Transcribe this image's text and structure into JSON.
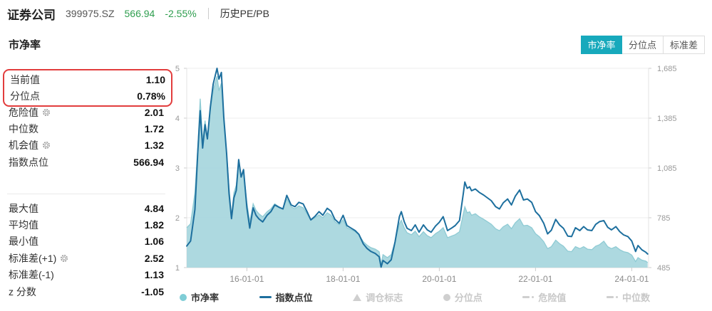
{
  "header": {
    "title": "证券公司",
    "code": "399975.SZ",
    "price": "566.94",
    "change": "-2.55%",
    "menu": "历史PE/PB"
  },
  "panel": {
    "title": "市净率",
    "highlight": [
      {
        "label": "当前值",
        "value": "1.10"
      },
      {
        "label": "分位点",
        "value": "0.78%"
      }
    ],
    "mid": [
      {
        "label": "危险值",
        "value": "2.01"
      },
      {
        "label": "中位数",
        "value": "1.72"
      },
      {
        "label": "机会值",
        "value": "1.32"
      },
      {
        "label": "指数点位",
        "value": "566.94"
      }
    ],
    "bottom": [
      {
        "label": "最大值",
        "value": "4.84"
      },
      {
        "label": "平均值",
        "value": "1.82"
      },
      {
        "label": "最小值",
        "value": "1.06"
      },
      {
        "label": "标准差(+1)",
        "value": "2.52"
      },
      {
        "label": "标准差(-1)",
        "value": "1.13"
      },
      {
        "label": "z 分数",
        "value": "-1.05"
      }
    ]
  },
  "tabs": [
    {
      "label": "市净率",
      "active": true
    },
    {
      "label": "分位点",
      "active": false
    },
    {
      "label": "标准差",
      "active": false
    }
  ],
  "legend": [
    {
      "label": "市净率",
      "active": true
    },
    {
      "label": "指数点位",
      "active": true
    },
    {
      "label": "调仓标志",
      "active": false
    },
    {
      "label": "分位点",
      "active": false
    },
    {
      "label": "危险值",
      "active": false
    },
    {
      "label": "中位数",
      "active": false
    }
  ],
  "colors": {
    "accent_teal": "#17a9bc",
    "down_green": "#2f9e4f",
    "highlight_red": "#e23d3d",
    "pb_area_fill": "#a6d6dd",
    "pb_area_edge": "#8fcbd4",
    "index_line": "#1d6f9e",
    "grid": "#ececec",
    "axis_text": "#999999"
  },
  "chart_data": {
    "type": "area",
    "note": "dual-axis: PB area on left axis, index points line on right axis",
    "x_range": [
      2014.75,
      2024.35
    ],
    "left_axis": {
      "range": [
        1,
        5
      ],
      "ticks": [
        1,
        2,
        3,
        4,
        5
      ],
      "labels": [
        "1",
        "2",
        "3",
        "4",
        "5"
      ]
    },
    "right_axis": {
      "range": [
        485,
        1685
      ],
      "ticks": [
        485,
        785,
        1085,
        1385,
        1685
      ],
      "labels": [
        "485",
        "785",
        "1,085",
        "1,385",
        "1,685"
      ]
    },
    "x_axis": {
      "ticks": [
        2016,
        2018,
        2020,
        2022,
        2024
      ],
      "labels": [
        "16-01-01",
        "18-01-01",
        "20-01-01",
        "22-01-01",
        "24-01-01"
      ]
    },
    "series": [
      {
        "name": "市净率",
        "type": "area",
        "axis": "left",
        "color": "#a6d6dd",
        "edge_color": "#8fcbd4"
      },
      {
        "name": "指数点位",
        "type": "line",
        "axis": "right",
        "color": "#1d6f9e"
      }
    ],
    "points": [
      [
        2014.75,
        1.8,
        615
      ],
      [
        2014.83,
        1.88,
        645
      ],
      [
        2014.92,
        2.5,
        835
      ],
      [
        2014.98,
        3.4,
        1180
      ],
      [
        2015.03,
        4.39,
        1430
      ],
      [
        2015.08,
        3.55,
        1205
      ],
      [
        2015.13,
        3.95,
        1345
      ],
      [
        2015.18,
        3.6,
        1260
      ],
      [
        2015.24,
        4.15,
        1450
      ],
      [
        2015.3,
        4.55,
        1590
      ],
      [
        2015.38,
        4.84,
        1685
      ],
      [
        2015.42,
        4.55,
        1620
      ],
      [
        2015.47,
        4.7,
        1660
      ],
      [
        2015.52,
        3.9,
        1390
      ],
      [
        2015.58,
        3.3,
        1170
      ],
      [
        2015.63,
        2.6,
        930
      ],
      [
        2015.68,
        2.05,
        780
      ],
      [
        2015.73,
        2.5,
        905
      ],
      [
        2015.78,
        2.65,
        950
      ],
      [
        2015.83,
        3.15,
        1135
      ],
      [
        2015.88,
        2.85,
        1030
      ],
      [
        2015.93,
        2.95,
        1075
      ],
      [
        2016.0,
        2.3,
        845
      ],
      [
        2016.06,
        1.92,
        723
      ],
      [
        2016.13,
        2.28,
        845
      ],
      [
        2016.19,
        2.15,
        800
      ],
      [
        2016.25,
        2.08,
        778
      ],
      [
        2016.33,
        2.02,
        760
      ],
      [
        2016.42,
        2.12,
        800
      ],
      [
        2016.5,
        2.18,
        822
      ],
      [
        2016.58,
        2.28,
        862
      ],
      [
        2016.67,
        2.22,
        848
      ],
      [
        2016.75,
        2.18,
        838
      ],
      [
        2016.83,
        2.38,
        920
      ],
      [
        2016.92,
        2.22,
        862
      ],
      [
        2017.0,
        2.18,
        852
      ],
      [
        2017.08,
        2.24,
        878
      ],
      [
        2017.17,
        2.2,
        868
      ],
      [
        2017.25,
        2.08,
        822
      ],
      [
        2017.33,
        1.95,
        772
      ],
      [
        2017.42,
        2.0,
        795
      ],
      [
        2017.5,
        2.06,
        822
      ],
      [
        2017.58,
        2.0,
        800
      ],
      [
        2017.67,
        2.1,
        842
      ],
      [
        2017.75,
        2.05,
        825
      ],
      [
        2017.83,
        1.92,
        775
      ],
      [
        2017.92,
        1.86,
        752
      ],
      [
        2018.0,
        1.96,
        800
      ],
      [
        2018.08,
        1.8,
        738
      ],
      [
        2018.17,
        1.76,
        722
      ],
      [
        2018.25,
        1.72,
        708
      ],
      [
        2018.33,
        1.66,
        685
      ],
      [
        2018.42,
        1.52,
        628
      ],
      [
        2018.5,
        1.45,
        600
      ],
      [
        2018.58,
        1.4,
        582
      ],
      [
        2018.67,
        1.37,
        570
      ],
      [
        2018.75,
        1.32,
        550
      ],
      [
        2018.79,
        1.06,
        488
      ],
      [
        2018.83,
        1.26,
        528
      ],
      [
        2018.92,
        1.2,
        508
      ],
      [
        2019.0,
        1.26,
        532
      ],
      [
        2019.08,
        1.52,
        640
      ],
      [
        2019.17,
        1.88,
        792
      ],
      [
        2019.21,
        1.95,
        822
      ],
      [
        2019.27,
        1.8,
        762
      ],
      [
        2019.33,
        1.7,
        722
      ],
      [
        2019.42,
        1.66,
        708
      ],
      [
        2019.5,
        1.73,
        742
      ],
      [
        2019.58,
        1.62,
        698
      ],
      [
        2019.67,
        1.72,
        742
      ],
      [
        2019.75,
        1.64,
        712
      ],
      [
        2019.83,
        1.6,
        698
      ],
      [
        2019.92,
        1.68,
        735
      ],
      [
        2020.0,
        1.73,
        758
      ],
      [
        2020.08,
        1.8,
        792
      ],
      [
        2020.17,
        1.6,
        708
      ],
      [
        2020.25,
        1.63,
        722
      ],
      [
        2020.33,
        1.66,
        738
      ],
      [
        2020.42,
        1.72,
        768
      ],
      [
        2020.5,
        2.08,
        932
      ],
      [
        2020.53,
        2.22,
        1000
      ],
      [
        2020.58,
        2.1,
        962
      ],
      [
        2020.63,
        2.12,
        972
      ],
      [
        2020.67,
        2.05,
        948
      ],
      [
        2020.75,
        2.08,
        958
      ],
      [
        2020.83,
        2.02,
        938
      ],
      [
        2020.92,
        1.97,
        922
      ],
      [
        2021.0,
        1.92,
        905
      ],
      [
        2021.08,
        1.87,
        888
      ],
      [
        2021.17,
        1.78,
        852
      ],
      [
        2021.25,
        1.74,
        838
      ],
      [
        2021.33,
        1.82,
        875
      ],
      [
        2021.42,
        1.87,
        898
      ],
      [
        2021.5,
        1.78,
        862
      ],
      [
        2021.58,
        1.9,
        915
      ],
      [
        2021.67,
        1.98,
        952
      ],
      [
        2021.75,
        1.84,
        892
      ],
      [
        2021.83,
        1.85,
        898
      ],
      [
        2021.92,
        1.8,
        878
      ],
      [
        2022.0,
        1.68,
        822
      ],
      [
        2022.08,
        1.62,
        798
      ],
      [
        2022.17,
        1.52,
        752
      ],
      [
        2022.25,
        1.38,
        688
      ],
      [
        2022.33,
        1.42,
        710
      ],
      [
        2022.42,
        1.55,
        775
      ],
      [
        2022.5,
        1.48,
        742
      ],
      [
        2022.58,
        1.43,
        722
      ],
      [
        2022.67,
        1.33,
        675
      ],
      [
        2022.75,
        1.32,
        672
      ],
      [
        2022.83,
        1.42,
        725
      ],
      [
        2022.92,
        1.38,
        708
      ],
      [
        2023.0,
        1.42,
        732
      ],
      [
        2023.08,
        1.37,
        712
      ],
      [
        2023.17,
        1.36,
        708
      ],
      [
        2023.25,
        1.43,
        745
      ],
      [
        2023.33,
        1.46,
        762
      ],
      [
        2023.42,
        1.53,
        768
      ],
      [
        2023.5,
        1.42,
        728
      ],
      [
        2023.58,
        1.38,
        712
      ],
      [
        2023.67,
        1.42,
        732
      ],
      [
        2023.75,
        1.36,
        702
      ],
      [
        2023.83,
        1.32,
        682
      ],
      [
        2023.92,
        1.3,
        672
      ],
      [
        2024.0,
        1.25,
        645
      ],
      [
        2024.08,
        1.12,
        582
      ],
      [
        2024.13,
        1.2,
        618
      ],
      [
        2024.21,
        1.15,
        592
      ],
      [
        2024.29,
        1.13,
        578
      ],
      [
        2024.33,
        1.1,
        567
      ]
    ],
    "title": "市净率 (PB) 与 指数点位 — 证券公司 399975.SZ"
  }
}
